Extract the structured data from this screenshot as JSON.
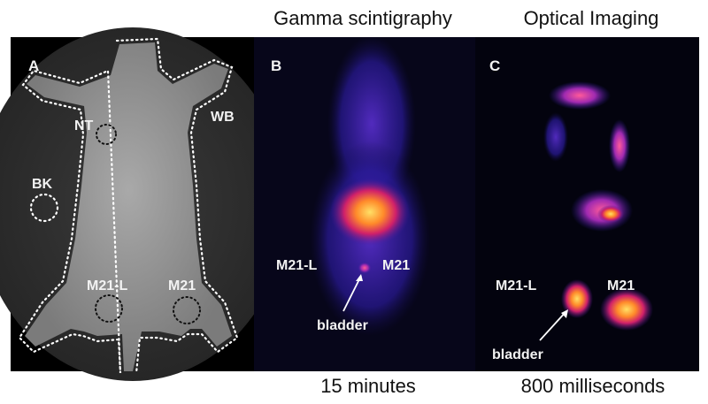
{
  "header": {
    "left_title": "Gamma scintigraphy",
    "right_title": "Optical Imaging"
  },
  "panels": [
    {
      "label": "A",
      "annotations": [
        "NT",
        "WB",
        "BK",
        "M21-L",
        "M21"
      ]
    },
    {
      "label": "B",
      "annotations": [
        "M21-L",
        "M21",
        "bladder"
      ]
    },
    {
      "label": "C",
      "annotations": [
        "M21-L",
        "M21",
        "bladder"
      ]
    }
  ],
  "footer": {
    "left_time": "15 minutes",
    "right_time": "800 milliseconds"
  }
}
